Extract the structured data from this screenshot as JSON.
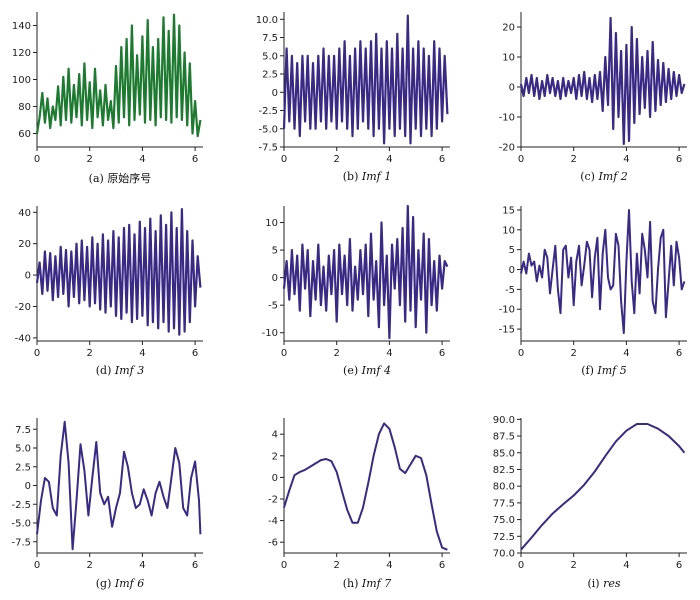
{
  "colors": {
    "original": "#1e7a30",
    "imf": "#3b2a84",
    "axis": "#222222"
  },
  "chart_data": [
    {
      "type": "line",
      "caption_prefix": "(a)",
      "caption_name": "原始序号",
      "caption_italic": false,
      "xlim": [
        0,
        6.3
      ],
      "ylim": [
        50,
        150
      ],
      "xticks": [
        0,
        2,
        4,
        6
      ],
      "xtick_labels": [
        "0",
        "2",
        "4",
        "6"
      ],
      "yticks": [
        60,
        80,
        100,
        120,
        140
      ],
      "ytick_labels": [
        "60",
        "80",
        "100",
        "120",
        "140"
      ],
      "series_color": "original",
      "x": [
        0,
        0.1,
        0.2,
        0.3,
        0.4,
        0.5,
        0.6,
        0.7,
        0.8,
        0.9,
        1.0,
        1.1,
        1.2,
        1.3,
        1.4,
        1.5,
        1.6,
        1.7,
        1.8,
        1.9,
        2.0,
        2.1,
        2.2,
        2.3,
        2.4,
        2.5,
        2.6,
        2.7,
        2.8,
        2.9,
        3.0,
        3.1,
        3.2,
        3.3,
        3.4,
        3.5,
        3.6,
        3.7,
        3.8,
        3.9,
        4.0,
        4.1,
        4.2,
        4.3,
        4.4,
        4.5,
        4.6,
        4.7,
        4.8,
        4.9,
        5.0,
        5.1,
        5.2,
        5.3,
        5.4,
        5.5,
        5.6,
        5.7,
        5.8,
        5.9,
        6.0,
        6.1,
        6.2
      ],
      "y": [
        60,
        72,
        90,
        68,
        86,
        64,
        80,
        70,
        95,
        66,
        102,
        70,
        108,
        68,
        96,
        72,
        104,
        66,
        112,
        70,
        98,
        64,
        108,
        72,
        92,
        66,
        96,
        70,
        84,
        64,
        110,
        68,
        124,
        72,
        130,
        66,
        140,
        70,
        118,
        74,
        132,
        68,
        144,
        70,
        124,
        66,
        130,
        72,
        146,
        70,
        136,
        68,
        148,
        72,
        140,
        70,
        120,
        66,
        112,
        60,
        84,
        58,
        70
      ]
    },
    {
      "type": "line",
      "caption_prefix": "(b)",
      "caption_name": "Imf 1",
      "caption_italic": true,
      "xlim": [
        0,
        6.3
      ],
      "ylim": [
        -7.5,
        11
      ],
      "xticks": [
        0,
        2,
        4,
        6
      ],
      "xtick_labels": [
        "0",
        "2",
        "4",
        "6"
      ],
      "yticks": [
        -7.5,
        -5,
        -2.5,
        0,
        2.5,
        5,
        7.5,
        10
      ],
      "ytick_labels": [
        "-7.5",
        "-5.0",
        "-2.5",
        "0",
        "2.5",
        "5.0",
        "7.5",
        "10.0"
      ],
      "series_color": "imf",
      "x": [
        0,
        0.1,
        0.2,
        0.3,
        0.4,
        0.5,
        0.6,
        0.7,
        0.8,
        0.9,
        1.0,
        1.1,
        1.2,
        1.3,
        1.4,
        1.5,
        1.6,
        1.7,
        1.8,
        1.9,
        2.0,
        2.1,
        2.2,
        2.3,
        2.4,
        2.5,
        2.6,
        2.7,
        2.8,
        2.9,
        3.0,
        3.1,
        3.2,
        3.3,
        3.4,
        3.5,
        3.6,
        3.7,
        3.8,
        3.9,
        4.0,
        4.1,
        4.2,
        4.3,
        4.4,
        4.5,
        4.6,
        4.7,
        4.8,
        4.9,
        5.0,
        5.1,
        5.2,
        5.3,
        5.4,
        5.5,
        5.6,
        5.7,
        5.8,
        5.9,
        6.0,
        6.1,
        6.2
      ],
      "y": [
        -5,
        6,
        -4,
        5,
        -5,
        4,
        -6,
        5,
        -4,
        5,
        -5,
        4,
        -5,
        5,
        -4,
        6,
        -5,
        5,
        -4,
        5,
        -5,
        6,
        -4,
        7,
        -5,
        5,
        -6,
        6,
        -5,
        7,
        -4,
        6,
        -5,
        7,
        -6,
        8,
        -5,
        6,
        -7,
        7,
        -5,
        6,
        -6,
        8,
        -5,
        6,
        -6,
        10.5,
        -7,
        6,
        -5,
        7,
        -6,
        6,
        -5,
        5,
        -6,
        7,
        -5,
        6,
        -4,
        5,
        -3
      ]
    },
    {
      "type": "line",
      "caption_prefix": "(c)",
      "caption_name": "Imf 2",
      "caption_italic": true,
      "xlim": [
        0,
        6.3
      ],
      "ylim": [
        -20,
        25
      ],
      "xticks": [
        0,
        2,
        4,
        6
      ],
      "xtick_labels": [
        "0",
        "2",
        "4",
        "6"
      ],
      "yticks": [
        -20,
        -10,
        0,
        10,
        20
      ],
      "ytick_labels": [
        "-20",
        "-10",
        "0",
        "10",
        "20"
      ],
      "series_color": "imf",
      "x": [
        0,
        0.1,
        0.2,
        0.3,
        0.4,
        0.5,
        0.6,
        0.7,
        0.8,
        0.9,
        1.0,
        1.1,
        1.2,
        1.3,
        1.4,
        1.5,
        1.6,
        1.7,
        1.8,
        1.9,
        2.0,
        2.1,
        2.2,
        2.3,
        2.4,
        2.5,
        2.6,
        2.7,
        2.8,
        2.9,
        3.0,
        3.1,
        3.2,
        3.3,
        3.4,
        3.5,
        3.6,
        3.7,
        3.8,
        3.9,
        4.0,
        4.1,
        4.2,
        4.3,
        4.4,
        4.5,
        4.6,
        4.7,
        4.8,
        4.9,
        5.0,
        5.1,
        5.2,
        5.3,
        5.4,
        5.5,
        5.6,
        5.7,
        5.8,
        5.9,
        6.0,
        6.1,
        6.2
      ],
      "y": [
        1,
        -3,
        3,
        -2,
        4,
        -3,
        3,
        -4,
        2,
        -3,
        4,
        -2,
        3,
        -3,
        2,
        -4,
        3,
        -3,
        2,
        -2,
        3,
        -4,
        4,
        -3,
        5,
        -4,
        3,
        -5,
        4,
        -4,
        5,
        -8,
        10,
        -6,
        23,
        -14,
        18,
        -10,
        12,
        -19,
        14,
        -18,
        20,
        -12,
        16,
        -9,
        10,
        -7,
        12,
        -10,
        15,
        -8,
        9,
        -6,
        8,
        -5,
        6,
        -4,
        5,
        -3,
        4,
        -2,
        1
      ]
    },
    {
      "type": "line",
      "caption_prefix": "(d)",
      "caption_name": "Imf 3",
      "caption_italic": true,
      "xlim": [
        0,
        6.3
      ],
      "ylim": [
        -42,
        44
      ],
      "xticks": [
        0,
        2,
        4,
        6
      ],
      "xtick_labels": [
        "0",
        "2",
        "4",
        "6"
      ],
      "yticks": [
        -40,
        -20,
        0,
        20,
        40
      ],
      "ytick_labels": [
        "-40",
        "-20",
        "0",
        "20",
        "40"
      ],
      "series_color": "imf",
      "x": [
        0,
        0.1,
        0.2,
        0.3,
        0.4,
        0.5,
        0.6,
        0.7,
        0.8,
        0.9,
        1.0,
        1.1,
        1.2,
        1.3,
        1.4,
        1.5,
        1.6,
        1.7,
        1.8,
        1.9,
        2.0,
        2.1,
        2.2,
        2.3,
        2.4,
        2.5,
        2.6,
        2.7,
        2.8,
        2.9,
        3.0,
        3.1,
        3.2,
        3.3,
        3.4,
        3.5,
        3.6,
        3.7,
        3.8,
        3.9,
        4.0,
        4.1,
        4.2,
        4.3,
        4.4,
        4.5,
        4.6,
        4.7,
        4.8,
        4.9,
        5.0,
        5.1,
        5.2,
        5.3,
        5.4,
        5.5,
        5.6,
        5.7,
        5.8,
        5.9,
        6.0,
        6.1,
        6.2
      ],
      "y": [
        -5,
        8,
        -12,
        15,
        -10,
        14,
        -16,
        12,
        -14,
        18,
        -12,
        16,
        -20,
        15,
        -14,
        20,
        -18,
        22,
        -16,
        18,
        -20,
        24,
        -18,
        20,
        -22,
        26,
        -24,
        22,
        -20,
        28,
        -26,
        24,
        -28,
        30,
        -24,
        32,
        -30,
        26,
        -28,
        34,
        -26,
        30,
        -32,
        36,
        -30,
        28,
        -34,
        38,
        -30,
        32,
        -36,
        40,
        -34,
        30,
        -38,
        42,
        -36,
        28,
        -30,
        22,
        -20,
        12,
        -8
      ]
    },
    {
      "type": "line",
      "caption_prefix": "(e)",
      "caption_name": "Imf 4",
      "caption_italic": true,
      "xlim": [
        0,
        6.3
      ],
      "ylim": [
        -11.5,
        13
      ],
      "xticks": [
        0,
        2,
        4,
        6
      ],
      "xtick_labels": [
        "0",
        "2",
        "4",
        "6"
      ],
      "yticks": [
        -10,
        -5,
        0,
        5,
        10
      ],
      "ytick_labels": [
        "-10",
        "-5",
        "0",
        "5",
        "10"
      ],
      "series_color": "imf",
      "x": [
        0,
        0.1,
        0.2,
        0.3,
        0.4,
        0.5,
        0.6,
        0.7,
        0.8,
        0.9,
        1.0,
        1.1,
        1.2,
        1.3,
        1.4,
        1.5,
        1.6,
        1.7,
        1.8,
        1.9,
        2.0,
        2.1,
        2.2,
        2.3,
        2.4,
        2.5,
        2.6,
        2.7,
        2.8,
        2.9,
        3.0,
        3.1,
        3.2,
        3.3,
        3.4,
        3.5,
        3.6,
        3.7,
        3.8,
        3.9,
        4.0,
        4.1,
        4.2,
        4.3,
        4.4,
        4.5,
        4.6,
        4.7,
        4.8,
        4.9,
        5.0,
        5.1,
        5.2,
        5.3,
        5.4,
        5.5,
        5.6,
        5.7,
        5.8,
        5.9,
        6.0,
        6.1,
        6.2
      ],
      "y": [
        -2,
        3,
        -4,
        5,
        -3,
        4,
        -6,
        6,
        -2,
        5,
        -7,
        3,
        -4,
        6,
        -5,
        2,
        -6,
        4,
        -3,
        5,
        -8,
        6,
        -3,
        4,
        -5,
        7,
        -6,
        2,
        -4,
        5,
        -3,
        6,
        -7,
        8,
        -4,
        3,
        -9,
        10,
        -5,
        4,
        -11,
        6,
        -2,
        7,
        -5,
        9,
        -8,
        13,
        -6,
        11,
        -9,
        5,
        -4,
        8,
        -10,
        7,
        -5,
        3,
        -6,
        4,
        -2,
        3,
        2
      ]
    },
    {
      "type": "line",
      "caption_prefix": "(f)",
      "caption_name": "Imf 5",
      "caption_italic": true,
      "xlim": [
        0,
        6.3
      ],
      "ylim": [
        -18,
        16
      ],
      "xticks": [
        0,
        2,
        4,
        6
      ],
      "xtick_labels": [
        "0",
        "2",
        "4",
        "6"
      ],
      "yticks": [
        -15,
        -10,
        -5,
        0,
        5,
        10,
        15
      ],
      "ytick_labels": [
        "-15",
        "-10",
        "-5",
        "0",
        "5",
        "10",
        "15"
      ],
      "series_color": "imf",
      "x": [
        0,
        0.1,
        0.2,
        0.3,
        0.4,
        0.5,
        0.6,
        0.7,
        0.8,
        0.9,
        1.0,
        1.1,
        1.2,
        1.3,
        1.4,
        1.5,
        1.6,
        1.7,
        1.8,
        1.9,
        2.0,
        2.1,
        2.2,
        2.3,
        2.4,
        2.5,
        2.6,
        2.7,
        2.8,
        2.9,
        3.0,
        3.1,
        3.2,
        3.3,
        3.4,
        3.5,
        3.6,
        3.7,
        3.8,
        3.9,
        4.0,
        4.1,
        4.2,
        4.3,
        4.4,
        4.5,
        4.6,
        4.7,
        4.8,
        4.9,
        5.0,
        5.1,
        5.2,
        5.3,
        5.4,
        5.5,
        5.6,
        5.7,
        5.8,
        5.9,
        6.0,
        6.1,
        6.2
      ],
      "y": [
        -1,
        2,
        -1,
        4,
        1,
        2,
        -3,
        1,
        -2,
        5,
        3,
        -6,
        0,
        6,
        -5,
        -11,
        5,
        6,
        -2,
        3,
        -9,
        2,
        6,
        -4,
        1,
        7,
        5,
        -7,
        3,
        8,
        -10,
        4,
        10,
        -2,
        -5,
        -4,
        9,
        6,
        -8,
        -16,
        2,
        15,
        -3,
        -11,
        4,
        -6,
        9,
        5,
        -2,
        12,
        -8,
        -11,
        0,
        8,
        10,
        -12,
        -3,
        6,
        -4,
        7,
        3,
        -5,
        -3
      ]
    },
    {
      "type": "line",
      "caption_prefix": "(g)",
      "caption_name": "Imf 6",
      "caption_italic": true,
      "xlim": [
        0,
        6.3
      ],
      "ylim": [
        -9,
        9
      ],
      "xticks": [
        0,
        2,
        4,
        6
      ],
      "xtick_labels": [
        "0",
        "2",
        "4",
        "6"
      ],
      "yticks": [
        -7.5,
        -5,
        -2.5,
        0,
        2.5,
        5,
        7.5
      ],
      "ytick_labels": [
        "-7.5",
        "-5.0",
        "-2.5",
        "0",
        "2.5",
        "5.0",
        "7.5"
      ],
      "series_color": "imf",
      "x": [
        0,
        0.15,
        0.3,
        0.45,
        0.6,
        0.75,
        0.9,
        1.05,
        1.2,
        1.35,
        1.5,
        1.65,
        1.8,
        1.95,
        2.1,
        2.25,
        2.4,
        2.55,
        2.7,
        2.85,
        3.0,
        3.15,
        3.3,
        3.45,
        3.6,
        3.75,
        3.9,
        4.05,
        4.2,
        4.35,
        4.5,
        4.65,
        4.8,
        4.95,
        5.1,
        5.25,
        5.4,
        5.55,
        5.7,
        5.85,
        6.0,
        6.15,
        6.2
      ],
      "y": [
        -6.5,
        -2,
        1,
        0.5,
        -3,
        -4,
        4,
        8.5,
        3,
        -8.5,
        -2,
        5.5,
        2,
        -4,
        1,
        5.8,
        -1,
        -2.5,
        -1.5,
        -5.5,
        -3,
        -1,
        4.5,
        2.5,
        -1,
        -3,
        -2.5,
        -0.5,
        -2,
        -4,
        -1,
        0.5,
        -1.5,
        -3,
        1,
        5,
        3,
        -3,
        -4,
        1,
        3.2,
        -2,
        -6.5
      ]
    },
    {
      "type": "line",
      "caption_prefix": "(h)",
      "caption_name": "Imf 7",
      "caption_italic": true,
      "xlim": [
        0,
        6.3
      ],
      "ylim": [
        -7,
        5.5
      ],
      "xticks": [
        0,
        2,
        4,
        6
      ],
      "xtick_labels": [
        "0",
        "2",
        "4",
        "6"
      ],
      "yticks": [
        -6,
        -4,
        -2,
        0,
        2,
        4
      ],
      "ytick_labels": [
        "-6",
        "-4",
        "-2",
        "0",
        "2",
        "4"
      ],
      "series_color": "imf",
      "x": [
        0,
        0.2,
        0.4,
        0.6,
        0.8,
        1.0,
        1.2,
        1.4,
        1.6,
        1.8,
        2.0,
        2.2,
        2.4,
        2.6,
        2.8,
        3.0,
        3.2,
        3.4,
        3.6,
        3.8,
        4.0,
        4.2,
        4.4,
        4.6,
        4.8,
        5.0,
        5.2,
        5.4,
        5.6,
        5.8,
        6.0,
        6.2
      ],
      "y": [
        -2.8,
        -1.2,
        0.2,
        0.5,
        0.7,
        1.0,
        1.3,
        1.6,
        1.7,
        1.5,
        0.5,
        -1.3,
        -3.0,
        -4.2,
        -4.2,
        -2.8,
        -0.5,
        2.0,
        4.0,
        5.0,
        4.5,
        2.8,
        0.8,
        0.4,
        1.2,
        2.0,
        1.8,
        0.2,
        -2.5,
        -5.0,
        -6.5,
        -6.7
      ]
    },
    {
      "type": "line",
      "caption_prefix": "(i)",
      "caption_name": "res",
      "caption_italic": true,
      "xlim": [
        0,
        6.3
      ],
      "ylim": [
        70,
        90.2
      ],
      "xticks": [
        0,
        2,
        4,
        6
      ],
      "xtick_labels": [
        "0",
        "2",
        "4",
        "6"
      ],
      "yticks": [
        70,
        72.5,
        75,
        77.5,
        80,
        82.5,
        85,
        87.5,
        90
      ],
      "ytick_labels": [
        "70.0",
        "72.5",
        "75.0",
        "77.5",
        "80.0",
        "82.5",
        "85.0",
        "87.5",
        "90.0"
      ],
      "series_color": "imf",
      "x": [
        0,
        0.4,
        0.8,
        1.2,
        1.6,
        2.0,
        2.4,
        2.8,
        3.2,
        3.6,
        4.0,
        4.4,
        4.8,
        5.2,
        5.6,
        6.0,
        6.2
      ],
      "y": [
        70.5,
        72.3,
        74.2,
        75.9,
        77.3,
        78.6,
        80.2,
        82.2,
        84.5,
        86.7,
        88.3,
        89.3,
        89.3,
        88.6,
        87.5,
        86.0,
        85.0
      ]
    }
  ]
}
